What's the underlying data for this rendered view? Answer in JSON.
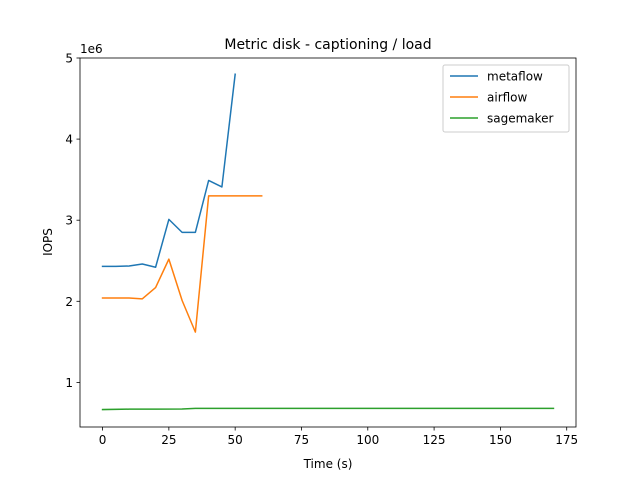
{
  "chart_data": {
    "type": "line",
    "title": "Metric disk - captioning / load",
    "xlabel": "Time (s)",
    "ylabel": "IOPS",
    "y_offset_label": "1e6",
    "xlim": [
      -8.5,
      178.5
    ],
    "ylim": [
      450000,
      5000000
    ],
    "x_ticks": [
      0,
      25,
      50,
      75,
      100,
      125,
      150,
      175
    ],
    "y_ticks": [
      1000000,
      2000000,
      3000000,
      4000000,
      5000000
    ],
    "y_tick_labels": [
      "1",
      "2",
      "3",
      "4",
      "5"
    ],
    "legend_position": "top-right",
    "grid": false,
    "series": [
      {
        "name": "metaflow",
        "color": "#1f77b4",
        "x": [
          0,
          5,
          10,
          15,
          20,
          25,
          30,
          35,
          40,
          45,
          50
        ],
        "y": [
          2430000,
          2430000,
          2435000,
          2460000,
          2420000,
          3010000,
          2850000,
          2850000,
          3490000,
          3410000,
          4800000
        ]
      },
      {
        "name": "airflow",
        "color": "#ff7f0e",
        "x": [
          0,
          5,
          10,
          15,
          20,
          25,
          30,
          35,
          40,
          45,
          50,
          55,
          60
        ],
        "y": [
          2040000,
          2040000,
          2040000,
          2030000,
          2170000,
          2520000,
          2010000,
          1620000,
          3300000,
          3300000,
          3300000,
          3300000,
          3300000
        ]
      },
      {
        "name": "sagemaker",
        "color": "#2ca02c",
        "x": [
          0,
          10,
          20,
          30,
          35,
          50,
          75,
          100,
          125,
          150,
          170
        ],
        "y": [
          665000,
          670000,
          670000,
          672000,
          680000,
          680000,
          680000,
          680000,
          680000,
          680000,
          680000
        ]
      }
    ]
  }
}
